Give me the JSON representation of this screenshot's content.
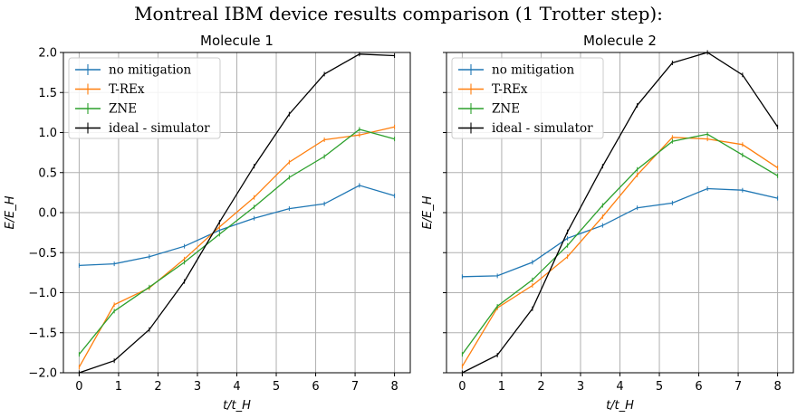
{
  "figure": {
    "suptitle": "Montreal IBM device results comparison (1 Trotter step):"
  },
  "colors": {
    "no_mitigation": "#1f77b4",
    "trex": "#ff7f0e",
    "zne": "#2ca02c",
    "ideal": "#000000",
    "grid": "#b0b0b0"
  },
  "chart_data": [
    {
      "type": "line",
      "title": "Molecule 1",
      "xlabel": "t/t_H",
      "ylabel": "E/E_H",
      "xlim": [
        -0.4,
        8.4
      ],
      "ylim": [
        -2.0,
        2.0
      ],
      "xticks": [
        "0",
        "1",
        "2",
        "3",
        "4",
        "5",
        "6",
        "7",
        "8"
      ],
      "yticks": [
        "2.0",
        "1.5",
        "1.0",
        "0.5",
        "0.0",
        "−0.5",
        "−1.0",
        "−1.5",
        "−2.0"
      ],
      "grid": true,
      "legend_position": "upper-left",
      "x": [
        0,
        0.89,
        1.78,
        2.67,
        3.56,
        4.44,
        5.33,
        6.22,
        7.11,
        8.0
      ],
      "series": [
        {
          "name": "no mitigation",
          "values": [
            -0.66,
            -0.64,
            -0.55,
            -0.42,
            -0.22,
            -0.07,
            0.05,
            0.11,
            0.34,
            0.21
          ]
        },
        {
          "name": "T-REx",
          "values": [
            -1.93,
            -1.15,
            -0.94,
            -0.58,
            -0.18,
            0.19,
            0.63,
            0.91,
            0.97,
            1.07
          ]
        },
        {
          "name": "ZNE",
          "values": [
            -1.77,
            -1.23,
            -0.93,
            -0.62,
            -0.27,
            0.07,
            0.44,
            0.7,
            1.04,
            0.92
          ]
        },
        {
          "name": "ideal - simulator",
          "values": [
            -2.0,
            -1.85,
            -1.46,
            -0.86,
            -0.12,
            0.58,
            1.23,
            1.73,
            1.98,
            1.96
          ]
        }
      ]
    },
    {
      "type": "line",
      "title": "Molecule 2",
      "xlabel": "t/t_H",
      "ylabel": "E/E_H",
      "xlim": [
        -0.4,
        8.4
      ],
      "ylim": [
        -2.0,
        2.0
      ],
      "xticks": [
        "0",
        "1",
        "2",
        "3",
        "4",
        "5",
        "6",
        "7",
        "8"
      ],
      "yticks": [
        "2.0",
        "1.5",
        "1.0",
        "0.5",
        "0.0",
        "−0.5",
        "−1.0",
        "−1.5",
        "−2.0"
      ],
      "grid": true,
      "legend_position": "upper-left",
      "x": [
        0,
        0.89,
        1.78,
        2.67,
        3.56,
        4.44,
        5.33,
        6.22,
        7.11,
        8.0
      ],
      "series": [
        {
          "name": "no mitigation",
          "values": [
            -0.8,
            -0.79,
            -0.62,
            -0.32,
            -0.16,
            0.06,
            0.12,
            0.3,
            0.28,
            0.18
          ]
        },
        {
          "name": "T-REx",
          "values": [
            -1.92,
            -1.19,
            -0.91,
            -0.55,
            -0.05,
            0.47,
            0.94,
            0.92,
            0.85,
            0.56
          ]
        },
        {
          "name": "ZNE",
          "values": [
            -1.77,
            -1.17,
            -0.84,
            -0.41,
            0.09,
            0.54,
            0.89,
            0.98,
            0.72,
            0.46
          ]
        },
        {
          "name": "ideal - simulator",
          "values": [
            -2.0,
            -1.78,
            -1.2,
            -0.24,
            0.58,
            1.34,
            1.87,
            2.0,
            1.72,
            1.07
          ]
        }
      ]
    }
  ]
}
